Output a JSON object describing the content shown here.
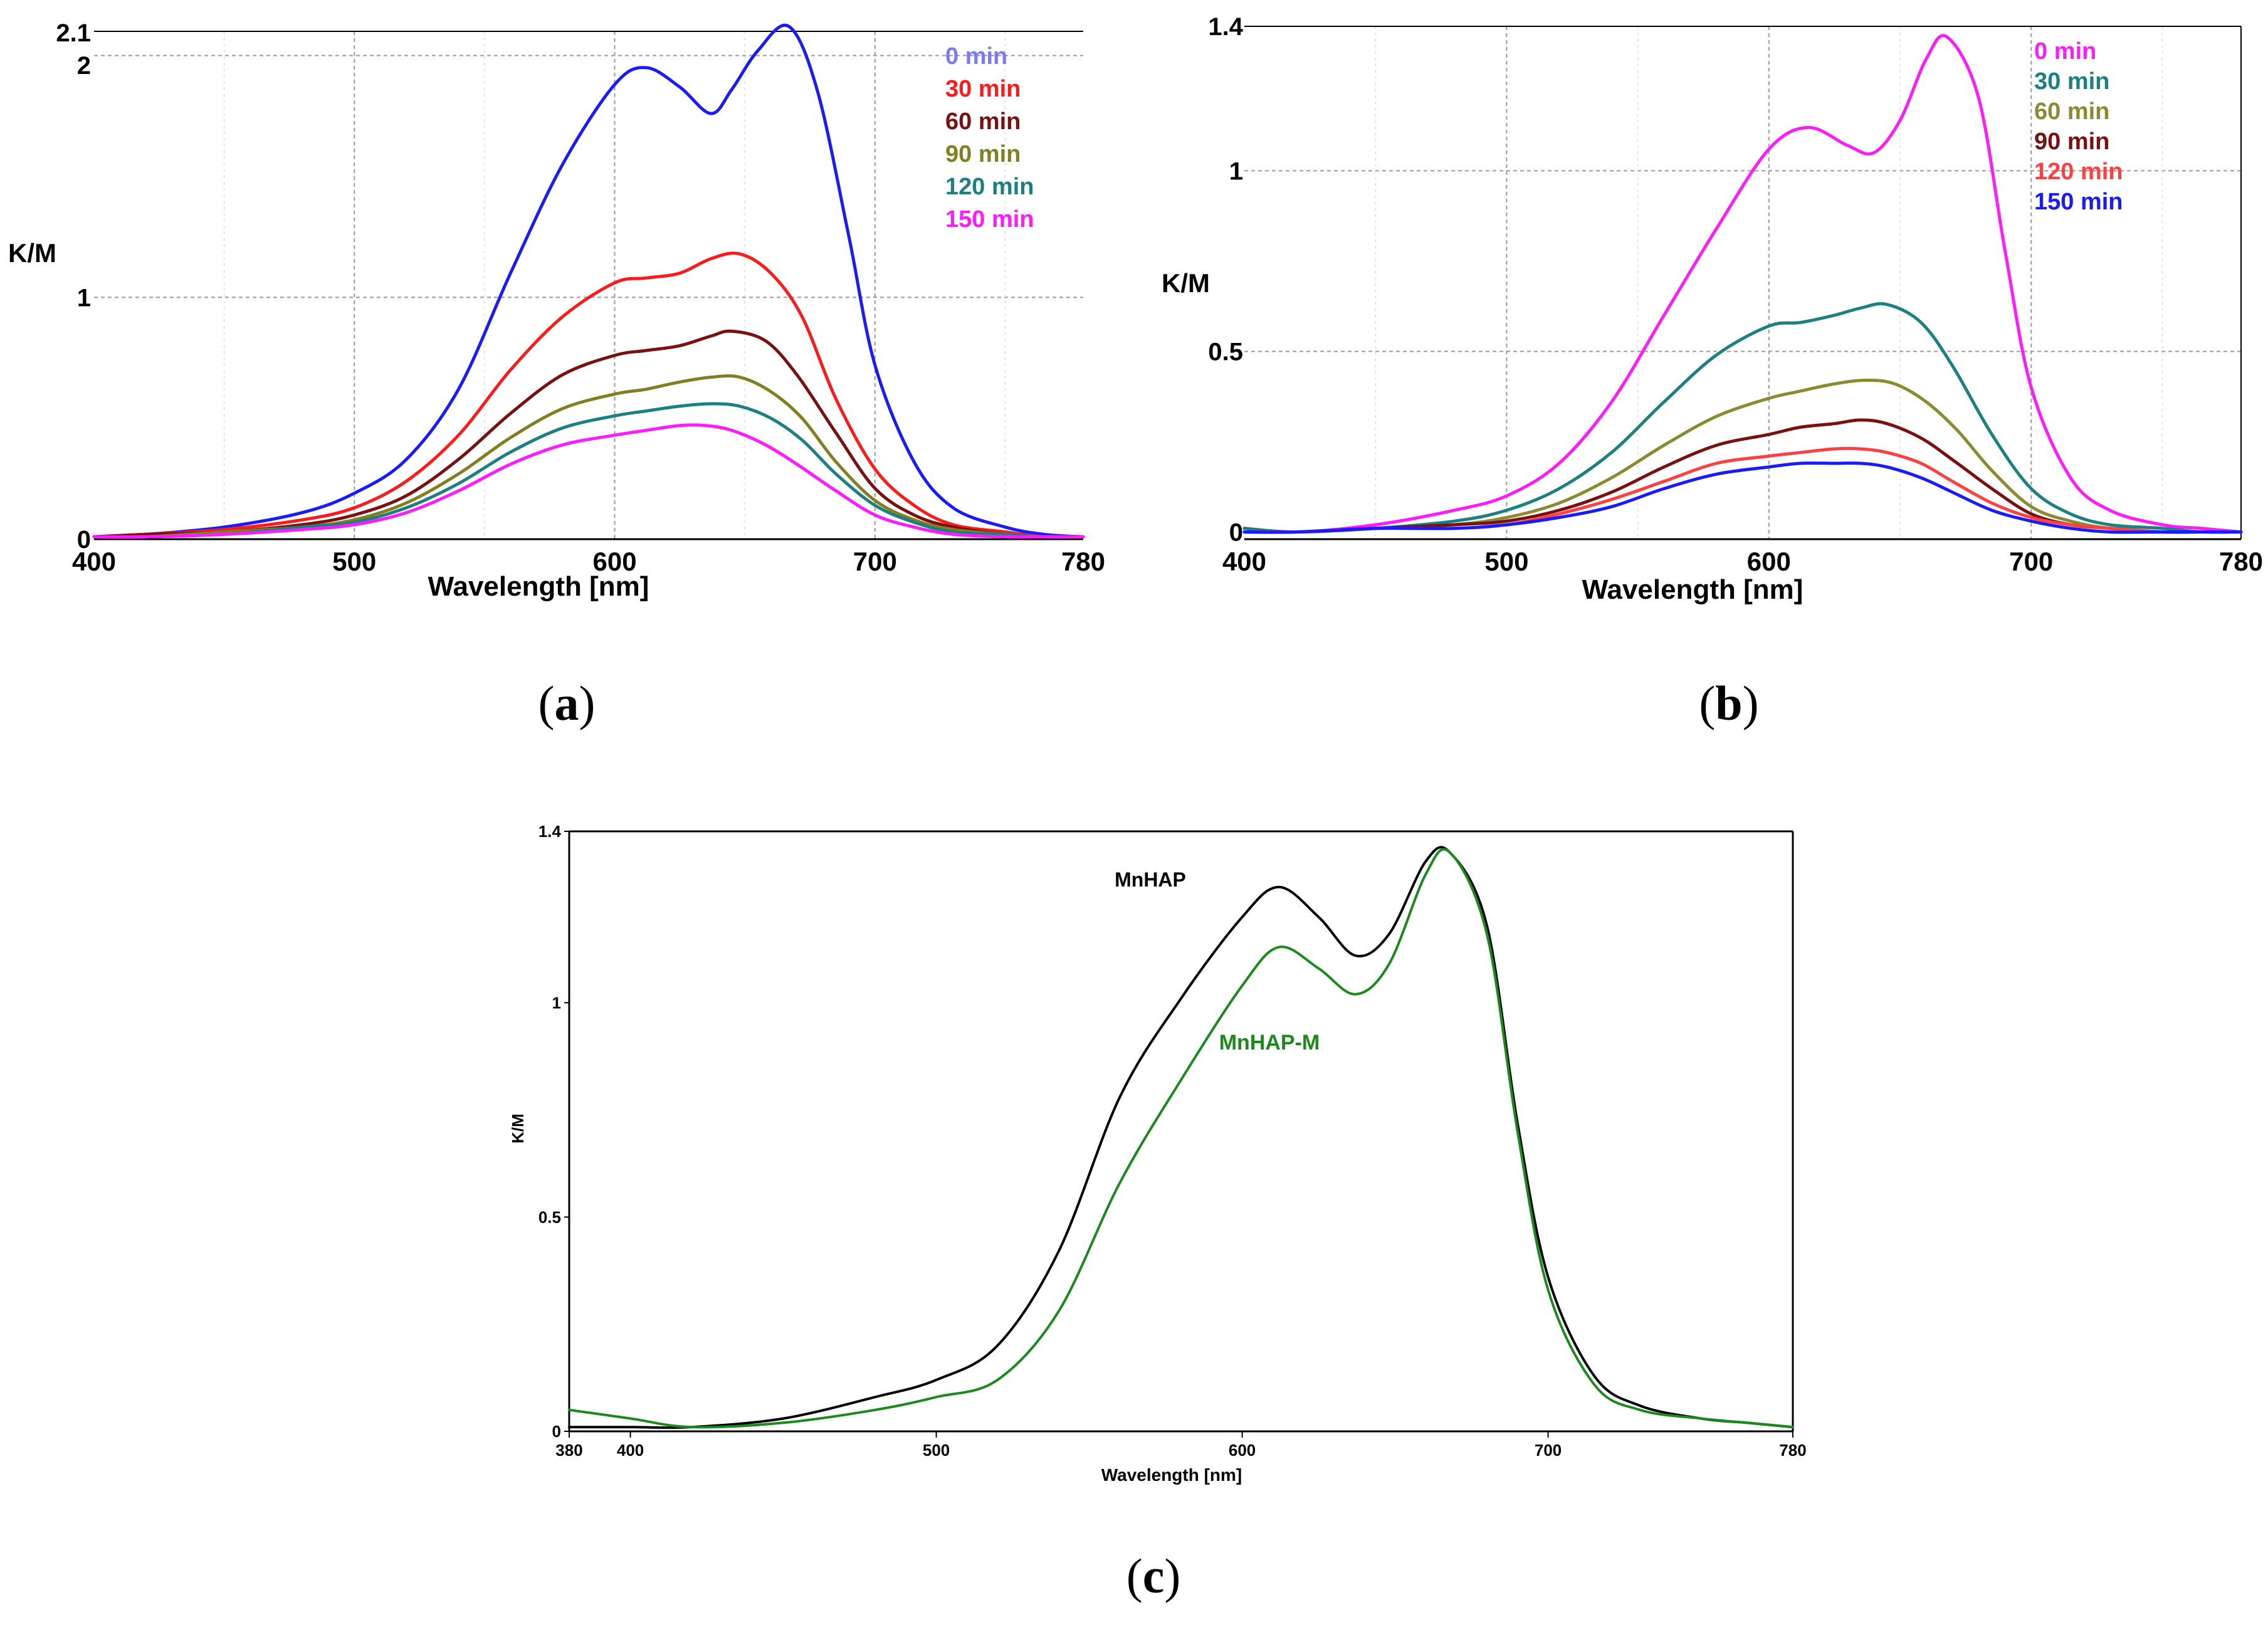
{
  "chart_data": [
    {
      "type": "line",
      "panel_label": "(a)",
      "caption_letter": "a",
      "xlabel": "Wavelength [nm]",
      "ylabel": "K/M",
      "xlim": [
        400,
        780
      ],
      "ylim": [
        0,
        2.1
      ],
      "xticks": [
        400,
        500,
        600,
        700,
        780
      ],
      "yticks": [
        0,
        1,
        2,
        2.1
      ],
      "ytick_labels": [
        "0",
        "1",
        "2",
        "2.1"
      ],
      "grid": true,
      "legend_position": "top-right",
      "series": [
        {
          "name": "0 min",
          "legend_color": "#7b7bf0",
          "color": "#1a1aff",
          "x": [
            400,
            420,
            450,
            480,
            500,
            520,
            540,
            560,
            580,
            600,
            612,
            625,
            637,
            645,
            655,
            667,
            678,
            690,
            700,
            715,
            730,
            750,
            765,
            780
          ],
          "y": [
            0.01,
            0.02,
            0.05,
            0.11,
            0.19,
            0.33,
            0.62,
            1.1,
            1.55,
            1.88,
            1.95,
            1.87,
            1.76,
            1.86,
            2.02,
            2.12,
            1.85,
            1.25,
            0.72,
            0.32,
            0.13,
            0.05,
            0.02,
            0.01
          ]
        },
        {
          "name": "30 min",
          "color": "#ff1a1a",
          "x": [
            400,
            420,
            450,
            480,
            500,
            520,
            540,
            560,
            580,
            600,
            612,
            625,
            637,
            648,
            660,
            672,
            685,
            700,
            715,
            730,
            750,
            765,
            780
          ],
          "y": [
            0.01,
            0.02,
            0.04,
            0.08,
            0.13,
            0.24,
            0.43,
            0.7,
            0.92,
            1.06,
            1.08,
            1.1,
            1.16,
            1.18,
            1.1,
            0.92,
            0.58,
            0.29,
            0.14,
            0.06,
            0.03,
            0.01,
            0.01
          ]
        },
        {
          "name": "60 min",
          "color": "#7a1010",
          "x": [
            400,
            420,
            450,
            480,
            500,
            520,
            540,
            560,
            580,
            600,
            612,
            625,
            637,
            645,
            658,
            670,
            685,
            700,
            715,
            730,
            750,
            765,
            780
          ],
          "y": [
            0.01,
            0.02,
            0.03,
            0.06,
            0.1,
            0.18,
            0.33,
            0.52,
            0.68,
            0.76,
            0.78,
            0.8,
            0.84,
            0.86,
            0.82,
            0.68,
            0.44,
            0.21,
            0.1,
            0.05,
            0.02,
            0.01,
            0.01
          ]
        },
        {
          "name": "90 min",
          "color": "#808020",
          "x": [
            400,
            420,
            450,
            480,
            500,
            520,
            540,
            560,
            580,
            600,
            612,
            625,
            637,
            648,
            660,
            672,
            685,
            700,
            715,
            730,
            750,
            765,
            780
          ],
          "y": [
            0.01,
            0.01,
            0.03,
            0.05,
            0.08,
            0.15,
            0.27,
            0.42,
            0.54,
            0.6,
            0.62,
            0.65,
            0.67,
            0.67,
            0.61,
            0.5,
            0.32,
            0.16,
            0.08,
            0.04,
            0.02,
            0.01,
            0.01
          ]
        },
        {
          "name": "120 min",
          "color": "#1a8080",
          "x": [
            400,
            420,
            450,
            480,
            500,
            520,
            540,
            560,
            580,
            600,
            612,
            625,
            637,
            648,
            660,
            672,
            685,
            700,
            715,
            730,
            750,
            765,
            780
          ],
          "y": [
            0.01,
            0.01,
            0.02,
            0.05,
            0.07,
            0.13,
            0.23,
            0.36,
            0.46,
            0.51,
            0.53,
            0.55,
            0.56,
            0.55,
            0.5,
            0.41,
            0.27,
            0.14,
            0.07,
            0.03,
            0.02,
            0.01,
            0.01
          ]
        },
        {
          "name": "150 min",
          "color": "#ff1aff",
          "x": [
            400,
            420,
            450,
            480,
            500,
            520,
            540,
            560,
            580,
            600,
            612,
            625,
            635,
            645,
            658,
            670,
            685,
            700,
            715,
            730,
            750,
            765,
            780
          ],
          "y": [
            0.01,
            0.01,
            0.02,
            0.04,
            0.06,
            0.11,
            0.2,
            0.31,
            0.39,
            0.43,
            0.45,
            0.47,
            0.47,
            0.45,
            0.39,
            0.31,
            0.2,
            0.1,
            0.05,
            0.02,
            0.01,
            0.01,
            0.01
          ]
        }
      ]
    },
    {
      "type": "line",
      "panel_label": "(b)",
      "caption_letter": "b",
      "xlabel": "Wavelength [nm]",
      "ylabel": "K/M",
      "xlim": [
        400,
        780
      ],
      "ylim": [
        -0.02,
        1.4
      ],
      "xticks": [
        400,
        500,
        600,
        700,
        780
      ],
      "yticks": [
        0,
        0.5,
        1,
        1.4
      ],
      "ytick_labels": [
        "0",
        "0.5",
        "1",
        "1.4"
      ],
      "grid": true,
      "legend_position": "top-right",
      "series": [
        {
          "name": "0 min",
          "color": "#ff1aff",
          "x": [
            400,
            420,
            450,
            480,
            500,
            520,
            540,
            560,
            580,
            600,
            615,
            630,
            640,
            650,
            660,
            668,
            680,
            690,
            700,
            715,
            730,
            750,
            765,
            780
          ],
          "y": [
            0.01,
            0.0,
            0.02,
            0.06,
            0.1,
            0.19,
            0.36,
            0.6,
            0.84,
            1.06,
            1.12,
            1.07,
            1.05,
            1.14,
            1.31,
            1.37,
            1.2,
            0.78,
            0.4,
            0.15,
            0.06,
            0.02,
            0.01,
            0.0
          ]
        },
        {
          "name": "30 min",
          "color": "#1a8080",
          "x": [
            400,
            420,
            450,
            480,
            500,
            520,
            540,
            560,
            580,
            600,
            612,
            625,
            635,
            645,
            658,
            670,
            685,
            700,
            715,
            730,
            750,
            765,
            780
          ],
          "y": [
            0.01,
            0.0,
            0.01,
            0.03,
            0.06,
            0.12,
            0.22,
            0.36,
            0.49,
            0.57,
            0.58,
            0.6,
            0.62,
            0.63,
            0.58,
            0.46,
            0.27,
            0.12,
            0.05,
            0.02,
            0.01,
            0.0,
            0.0
          ]
        },
        {
          "name": "60 min",
          "color": "#8a8a30",
          "x": [
            400,
            420,
            450,
            480,
            500,
            520,
            540,
            560,
            580,
            600,
            612,
            625,
            637,
            648,
            660,
            672,
            685,
            700,
            715,
            730,
            750,
            765,
            780
          ],
          "y": [
            0.0,
            0.0,
            0.01,
            0.02,
            0.04,
            0.08,
            0.15,
            0.24,
            0.32,
            0.37,
            0.39,
            0.41,
            0.42,
            0.41,
            0.36,
            0.28,
            0.17,
            0.07,
            0.03,
            0.01,
            0.0,
            0.0,
            0.0
          ]
        },
        {
          "name": "90 min",
          "color": "#7a1010",
          "x": [
            400,
            420,
            450,
            480,
            500,
            520,
            540,
            560,
            580,
            600,
            612,
            625,
            635,
            645,
            658,
            670,
            685,
            700,
            715,
            730,
            750,
            765,
            780
          ],
          "y": [
            0.0,
            0.0,
            0.01,
            0.02,
            0.03,
            0.06,
            0.11,
            0.18,
            0.24,
            0.27,
            0.29,
            0.3,
            0.31,
            0.3,
            0.26,
            0.2,
            0.12,
            0.05,
            0.02,
            0.01,
            0.0,
            0.0,
            0.0
          ]
        },
        {
          "name": "120 min",
          "color": "#ff4040",
          "x": [
            400,
            420,
            450,
            480,
            500,
            520,
            540,
            560,
            580,
            600,
            612,
            625,
            635,
            645,
            658,
            670,
            685,
            700,
            715,
            730,
            750,
            765,
            780
          ],
          "y": [
            0.0,
            0.0,
            0.01,
            0.01,
            0.02,
            0.05,
            0.09,
            0.14,
            0.19,
            0.21,
            0.22,
            0.23,
            0.23,
            0.22,
            0.19,
            0.14,
            0.08,
            0.04,
            0.02,
            0.01,
            0.0,
            0.0,
            0.0
          ]
        },
        {
          "name": "150 min",
          "color": "#1a1aff",
          "x": [
            400,
            420,
            450,
            480,
            500,
            520,
            540,
            560,
            580,
            600,
            612,
            625,
            635,
            645,
            658,
            670,
            685,
            700,
            715,
            730,
            750,
            765,
            780
          ],
          "y": [
            0.0,
            0.0,
            0.01,
            0.01,
            0.02,
            0.04,
            0.07,
            0.12,
            0.16,
            0.18,
            0.19,
            0.19,
            0.19,
            0.18,
            0.15,
            0.11,
            0.06,
            0.03,
            0.01,
            0.0,
            0.0,
            0.0,
            0.0
          ]
        }
      ]
    },
    {
      "type": "line",
      "panel_label": "(c)",
      "caption_letter": "c",
      "xlabel": "Wavelength [nm]",
      "ylabel": "K/M",
      "xlim": [
        380,
        780
      ],
      "ylim": [
        0,
        1.4
      ],
      "xticks": [
        380,
        400,
        500,
        600,
        700,
        780
      ],
      "yticks": [
        0,
        0.5,
        1,
        1.4
      ],
      "ytick_labels": [
        "0",
        "0.5",
        "1",
        "1.4"
      ],
      "grid": false,
      "series": [
        {
          "name": "MnHAP",
          "color": "#000000",
          "x": [
            380,
            400,
            420,
            450,
            480,
            500,
            520,
            540,
            560,
            580,
            600,
            612,
            625,
            637,
            648,
            660,
            668,
            680,
            690,
            700,
            715,
            730,
            750,
            765,
            780
          ],
          "y": [
            0.01,
            0.01,
            0.01,
            0.03,
            0.08,
            0.12,
            0.2,
            0.42,
            0.78,
            1.01,
            1.2,
            1.27,
            1.2,
            1.11,
            1.16,
            1.33,
            1.35,
            1.18,
            0.72,
            0.36,
            0.13,
            0.06,
            0.03,
            0.02,
            0.01
          ]
        },
        {
          "name": "MnHAP-M",
          "color": "#1a8a1a",
          "x": [
            380,
            400,
            420,
            450,
            480,
            500,
            520,
            540,
            560,
            580,
            600,
            612,
            625,
            637,
            648,
            660,
            668,
            680,
            690,
            700,
            715,
            730,
            750,
            765,
            780
          ],
          "y": [
            0.05,
            0.03,
            0.01,
            0.02,
            0.05,
            0.08,
            0.12,
            0.28,
            0.58,
            0.82,
            1.04,
            1.13,
            1.08,
            1.02,
            1.09,
            1.3,
            1.35,
            1.16,
            0.7,
            0.33,
            0.11,
            0.05,
            0.03,
            0.02,
            0.01
          ]
        }
      ]
    }
  ]
}
